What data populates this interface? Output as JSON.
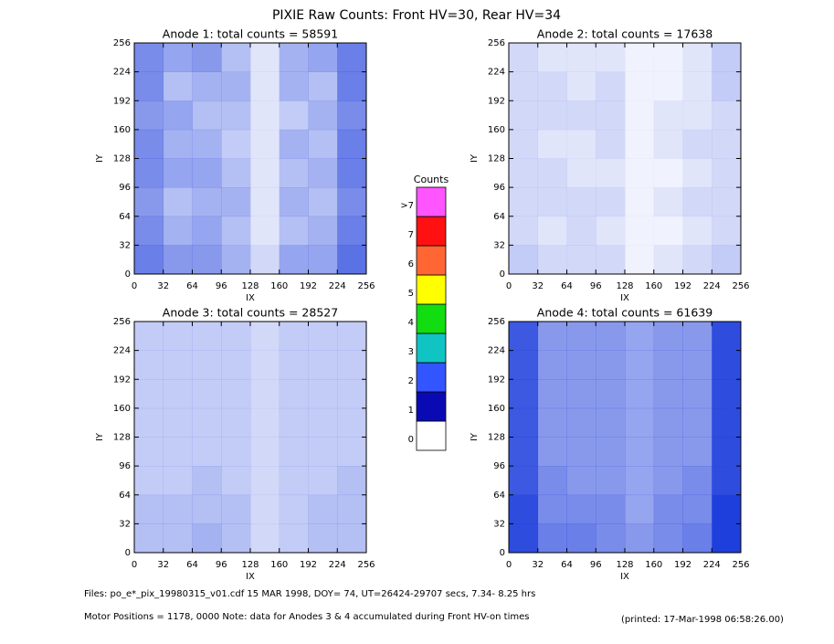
{
  "title": "PIXIE Raw Counts:  Front HV=30, Rear HV=34",
  "colorbar": {
    "title": "Counts",
    "levels": [
      {
        "label": "0",
        "color": "#ffffff"
      },
      {
        "label": "1",
        "color": "#0a0ab4"
      },
      {
        "label": "2",
        "color": "#3355ff"
      },
      {
        "label": "3",
        "color": "#11c4c4"
      },
      {
        "label": "4",
        "color": "#11dd11"
      },
      {
        "label": "5",
        "color": "#ffff00"
      },
      {
        "label": "6",
        "color": "#ff6633"
      },
      {
        "label": "7",
        "color": "#ff1111"
      },
      {
        "label": ">7",
        "color": "#ff55ff"
      }
    ]
  },
  "chart_data": [
    {
      "type": "heatmap",
      "title": "Anode 1: total counts = 58591",
      "x_label": "IX",
      "y_label": "IY",
      "xlim": [
        0,
        256
      ],
      "ylim": [
        0,
        256
      ],
      "xticks": [
        0,
        32,
        64,
        96,
        128,
        160,
        192,
        224,
        256
      ],
      "yticks": [
        0,
        32,
        64,
        96,
        128,
        160,
        192,
        224,
        256
      ],
      "cell_color": "#1f3fdc",
      "grid_values": [
        [
          0.9,
          0.7,
          0.8,
          0.5,
          0.2,
          0.6,
          0.7,
          1.0
        ],
        [
          0.9,
          0.5,
          0.6,
          0.6,
          0.2,
          0.6,
          0.5,
          1.0
        ],
        [
          0.8,
          0.7,
          0.5,
          0.5,
          0.2,
          0.4,
          0.6,
          0.9
        ],
        [
          0.9,
          0.6,
          0.6,
          0.4,
          0.2,
          0.6,
          0.5,
          1.0
        ],
        [
          0.9,
          0.7,
          0.7,
          0.5,
          0.2,
          0.5,
          0.6,
          1.0
        ],
        [
          0.8,
          0.5,
          0.6,
          0.6,
          0.2,
          0.6,
          0.5,
          0.9
        ],
        [
          0.9,
          0.6,
          0.7,
          0.5,
          0.2,
          0.5,
          0.6,
          1.0
        ],
        [
          1.0,
          0.8,
          0.8,
          0.6,
          0.3,
          0.7,
          0.7,
          1.1
        ]
      ]
    },
    {
      "type": "heatmap",
      "title": "Anode 2: total counts = 17638",
      "x_label": "IX",
      "y_label": "IY",
      "xlim": [
        0,
        256
      ],
      "ylim": [
        0,
        256
      ],
      "xticks": [
        0,
        32,
        64,
        96,
        128,
        160,
        192,
        224,
        256
      ],
      "yticks": [
        0,
        32,
        64,
        96,
        128,
        160,
        192,
        224,
        256
      ],
      "cell_color": "#1f3fdc",
      "grid_values": [
        [
          0.3,
          0.2,
          0.2,
          0.2,
          0.1,
          0.1,
          0.2,
          0.4
        ],
        [
          0.3,
          0.3,
          0.2,
          0.3,
          0.1,
          0.1,
          0.2,
          0.4
        ],
        [
          0.3,
          0.3,
          0.3,
          0.3,
          0.1,
          0.2,
          0.2,
          0.3
        ],
        [
          0.3,
          0.2,
          0.2,
          0.3,
          0.1,
          0.2,
          0.3,
          0.3
        ],
        [
          0.3,
          0.3,
          0.2,
          0.2,
          0.1,
          0.1,
          0.2,
          0.3
        ],
        [
          0.3,
          0.3,
          0.3,
          0.3,
          0.1,
          0.2,
          0.3,
          0.3
        ],
        [
          0.3,
          0.2,
          0.3,
          0.2,
          0.1,
          0.1,
          0.2,
          0.3
        ],
        [
          0.4,
          0.3,
          0.3,
          0.3,
          0.1,
          0.2,
          0.3,
          0.4
        ]
      ]
    },
    {
      "type": "heatmap",
      "title": "Anode 3: total counts = 28527",
      "x_label": "IX",
      "y_label": "IY",
      "xlim": [
        0,
        256
      ],
      "ylim": [
        0,
        256
      ],
      "xticks": [
        0,
        32,
        64,
        96,
        128,
        160,
        192,
        224,
        256
      ],
      "yticks": [
        0,
        32,
        64,
        96,
        128,
        160,
        192,
        224,
        256
      ],
      "cell_color": "#1f3fdc",
      "grid_values": [
        [
          0.4,
          0.4,
          0.4,
          0.4,
          0.3,
          0.4,
          0.4,
          0.4
        ],
        [
          0.4,
          0.4,
          0.4,
          0.4,
          0.3,
          0.4,
          0.4,
          0.4
        ],
        [
          0.4,
          0.4,
          0.4,
          0.4,
          0.3,
          0.4,
          0.4,
          0.4
        ],
        [
          0.4,
          0.4,
          0.4,
          0.4,
          0.3,
          0.4,
          0.4,
          0.4
        ],
        [
          0.4,
          0.4,
          0.4,
          0.4,
          0.3,
          0.4,
          0.4,
          0.4
        ],
        [
          0.4,
          0.4,
          0.5,
          0.4,
          0.3,
          0.4,
          0.4,
          0.5
        ],
        [
          0.5,
          0.5,
          0.5,
          0.5,
          0.3,
          0.4,
          0.5,
          0.5
        ],
        [
          0.5,
          0.5,
          0.6,
          0.5,
          0.3,
          0.4,
          0.5,
          0.5
        ]
      ]
    },
    {
      "type": "heatmap",
      "title": "Anode 4: total counts = 61639",
      "x_label": "IX",
      "y_label": "IY",
      "xlim": [
        0,
        256
      ],
      "ylim": [
        0,
        256
      ],
      "xticks": [
        0,
        32,
        64,
        96,
        128,
        160,
        192,
        224,
        256
      ],
      "yticks": [
        0,
        32,
        64,
        96,
        128,
        160,
        192,
        224,
        256
      ],
      "cell_color": "#1f3fdc",
      "grid_values": [
        [
          1.3,
          0.8,
          0.8,
          0.8,
          0.7,
          0.8,
          0.8,
          1.4
        ],
        [
          1.3,
          0.8,
          0.8,
          0.8,
          0.7,
          0.8,
          0.8,
          1.4
        ],
        [
          1.3,
          0.8,
          0.8,
          0.8,
          0.7,
          0.8,
          0.8,
          1.4
        ],
        [
          1.3,
          0.8,
          0.8,
          0.8,
          0.7,
          0.8,
          0.8,
          1.4
        ],
        [
          1.3,
          0.8,
          0.8,
          0.8,
          0.7,
          0.8,
          0.8,
          1.4
        ],
        [
          1.3,
          0.9,
          0.8,
          0.8,
          0.7,
          0.8,
          0.9,
          1.4
        ],
        [
          1.4,
          0.9,
          0.9,
          0.9,
          0.7,
          0.9,
          0.9,
          1.5
        ],
        [
          1.4,
          1.0,
          1.0,
          0.9,
          0.8,
          0.9,
          1.0,
          1.5
        ]
      ]
    }
  ],
  "footer": {
    "files": "Files: po_e*_pix_19980315_v01.cdf    15 MAR 1998, DOY= 74, UT=26424-29707 secs,  7.34- 8.25 hrs",
    "motor": "Motor Positions = 1178, 0000   Note: data for Anodes 3 & 4 accumulated during Front HV-on times",
    "printed": "(printed: 17-Mar-1998 06:58:26.00)"
  }
}
